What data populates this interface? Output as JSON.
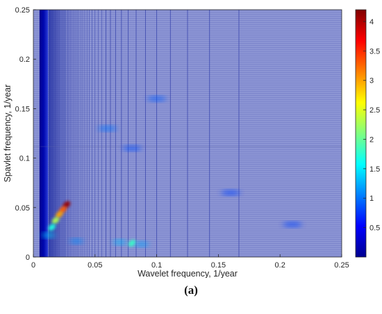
{
  "chart_data": {
    "type": "heatmap",
    "title": "",
    "xlabel": "Wavelet frequency, 1/year",
    "ylabel": "Spavlet frequency, 1/year",
    "xlim": [
      0,
      0.25
    ],
    "ylim": [
      0,
      0.25
    ],
    "x_ticks": [
      0,
      0.05,
      0.1,
      0.15,
      0.2,
      0.25
    ],
    "x_tick_labels": [
      "0",
      "0.05",
      "0.1",
      "0.15",
      "0.2",
      "0.25"
    ],
    "y_ticks": [
      0,
      0.05,
      0.1,
      0.15,
      0.2,
      0.25
    ],
    "y_tick_labels": [
      "0",
      "0.05",
      "0.1",
      "0.15",
      "0.2",
      "0.25"
    ],
    "colorbar": {
      "colormap": "jet",
      "range": [
        0,
        4.2
      ],
      "ticks": [
        0.5,
        1,
        1.5,
        2,
        2.5,
        3,
        3.5,
        4
      ],
      "tick_labels": [
        "0.5",
        "1",
        "1.5",
        "2",
        "2.5",
        "3",
        "3.5",
        "4"
      ]
    },
    "background_value": 0.6,
    "low_frequency_band": {
      "x_range": [
        0.005,
        0.012
      ],
      "value": 0.05
    },
    "features": [
      {
        "x": 0.027,
        "y": 0.053,
        "value": 4.1
      },
      {
        "x": 0.024,
        "y": 0.048,
        "value": 3.3
      },
      {
        "x": 0.021,
        "y": 0.043,
        "value": 3.0
      },
      {
        "x": 0.018,
        "y": 0.037,
        "value": 2.3
      },
      {
        "x": 0.015,
        "y": 0.03,
        "value": 1.7
      },
      {
        "x": 0.012,
        "y": 0.022,
        "value": 1.4
      },
      {
        "x": 0.08,
        "y": 0.014,
        "value": 1.8
      },
      {
        "x": 0.07,
        "y": 0.015,
        "value": 1.3
      },
      {
        "x": 0.088,
        "y": 0.013,
        "value": 1.2
      },
      {
        "x": 0.035,
        "y": 0.016,
        "value": 1.1
      },
      {
        "x": 0.06,
        "y": 0.13,
        "value": 1.0
      },
      {
        "x": 0.1,
        "y": 0.16,
        "value": 0.9
      },
      {
        "x": 0.08,
        "y": 0.11,
        "value": 0.85
      },
      {
        "x": 0.16,
        "y": 0.065,
        "value": 0.8
      },
      {
        "x": 0.21,
        "y": 0.033,
        "value": 0.8
      }
    ],
    "grid": false,
    "legend": "colorbar-right"
  },
  "caption": "(a)"
}
